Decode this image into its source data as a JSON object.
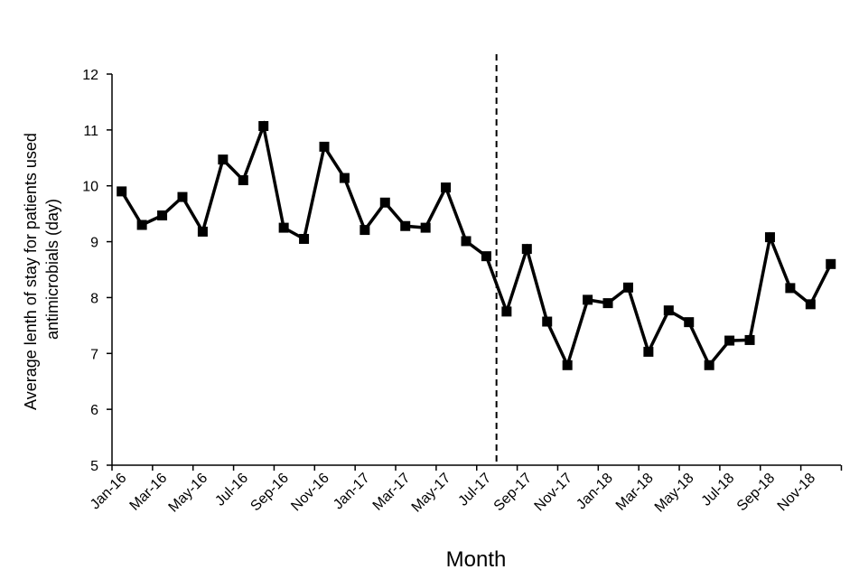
{
  "chart_data": {
    "type": "line",
    "title": "",
    "xlabel": "Month",
    "ylabel_lines": [
      "Average lenth of stay for patients used",
      "antimicrobials (day)"
    ],
    "ylim": [
      5,
      12
    ],
    "yticks": [
      5,
      6,
      7,
      8,
      9,
      10,
      11,
      12
    ],
    "grid": false,
    "x_tick_labels": [
      "Jan-16",
      "Mar-16",
      "May-16",
      "Jul-16",
      "Sep-16",
      "Nov-16",
      "Jan-17",
      "Mar-17",
      "May-17",
      "Jul-17",
      "Sep-17",
      "Nov-17",
      "Jan-18",
      "Mar-18",
      "May-18",
      "Jul-18",
      "Sep-18",
      "Nov-18"
    ],
    "marker": "square",
    "line_color": "#000000",
    "intervention_line": {
      "style": "dashed",
      "position_month_index": 18.5
    },
    "series": [
      {
        "values": [
          9.9,
          9.3,
          9.47,
          9.8,
          9.18,
          10.47,
          10.1,
          11.07,
          9.25,
          9.05,
          10.7,
          10.14,
          9.21,
          9.7,
          9.28,
          9.25,
          9.97,
          9.01,
          8.74,
          7.75,
          8.87,
          7.57,
          6.79,
          7.96,
          7.9,
          8.18,
          7.03,
          7.77,
          7.56,
          6.79,
          7.23,
          7.24,
          9.08,
          8.17,
          7.88,
          8.6
        ]
      }
    ]
  }
}
